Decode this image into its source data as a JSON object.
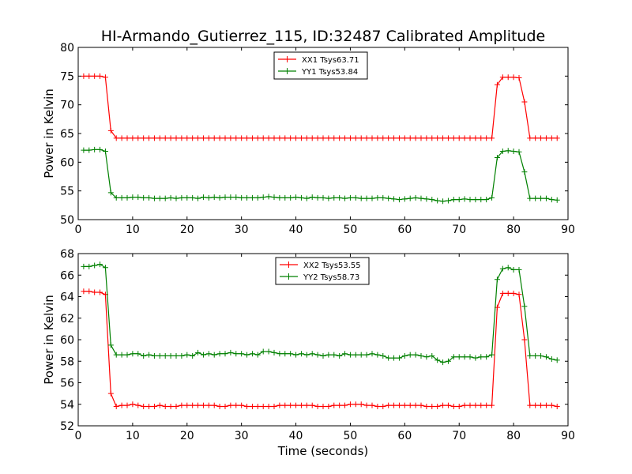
{
  "chart_data": [
    {
      "type": "line",
      "title": "HI-Armando_Gutierrez_115, ID:32487 Calibrated Amplitude",
      "xlabel": "",
      "ylabel": "Power in Kelvin",
      "xlim": [
        0,
        90
      ],
      "ylim": [
        50,
        80
      ],
      "xticks": [
        0,
        10,
        20,
        30,
        40,
        50,
        60,
        70,
        80,
        90
      ],
      "yticks": [
        50,
        55,
        60,
        65,
        70,
        75,
        80
      ],
      "grid": false,
      "legend_position": "top-center",
      "series": [
        {
          "name": "XX1 Tsys63.71",
          "color": "#ff0000",
          "x": [
            1,
            2,
            3,
            4,
            5,
            6,
            7,
            8,
            9,
            10,
            11,
            12,
            13,
            14,
            15,
            16,
            17,
            18,
            19,
            20,
            21,
            22,
            23,
            24,
            25,
            26,
            27,
            28,
            29,
            30,
            31,
            32,
            33,
            34,
            35,
            36,
            37,
            38,
            39,
            40,
            41,
            42,
            43,
            44,
            45,
            46,
            47,
            48,
            49,
            50,
            51,
            52,
            53,
            54,
            55,
            56,
            57,
            58,
            59,
            60,
            61,
            62,
            63,
            64,
            65,
            66,
            67,
            68,
            69,
            70,
            71,
            72,
            73,
            74,
            75,
            76,
            77,
            78,
            79,
            80,
            81,
            82,
            83,
            84,
            85,
            86,
            87,
            88
          ],
          "y": [
            75.0,
            75.0,
            75.0,
            75.0,
            74.8,
            65.5,
            64.2,
            64.2,
            64.2,
            64.2,
            64.2,
            64.2,
            64.2,
            64.2,
            64.2,
            64.2,
            64.2,
            64.2,
            64.2,
            64.2,
            64.2,
            64.2,
            64.2,
            64.2,
            64.2,
            64.2,
            64.2,
            64.2,
            64.2,
            64.2,
            64.2,
            64.2,
            64.2,
            64.2,
            64.2,
            64.2,
            64.2,
            64.2,
            64.2,
            64.2,
            64.2,
            64.2,
            64.2,
            64.2,
            64.2,
            64.2,
            64.2,
            64.2,
            64.2,
            64.2,
            64.2,
            64.2,
            64.2,
            64.2,
            64.2,
            64.2,
            64.2,
            64.2,
            64.2,
            64.2,
            64.2,
            64.2,
            64.2,
            64.2,
            64.2,
            64.2,
            64.2,
            64.2,
            64.2,
            64.2,
            64.2,
            64.2,
            64.2,
            64.2,
            64.2,
            64.2,
            73.5,
            74.8,
            74.8,
            74.8,
            74.7,
            70.5,
            64.2,
            64.2,
            64.2,
            64.2,
            64.2,
            64.2
          ]
        },
        {
          "name": "YY1 Tsys53.84",
          "color": "#008000",
          "x": [
            1,
            2,
            3,
            4,
            5,
            6,
            7,
            8,
            9,
            10,
            11,
            12,
            13,
            14,
            15,
            16,
            17,
            18,
            19,
            20,
            21,
            22,
            23,
            24,
            25,
            26,
            27,
            28,
            29,
            30,
            31,
            32,
            33,
            34,
            35,
            36,
            37,
            38,
            39,
            40,
            41,
            42,
            43,
            44,
            45,
            46,
            47,
            48,
            49,
            50,
            51,
            52,
            53,
            54,
            55,
            56,
            57,
            58,
            59,
            60,
            61,
            62,
            63,
            64,
            65,
            66,
            67,
            68,
            69,
            70,
            71,
            72,
            73,
            74,
            75,
            76,
            77,
            78,
            79,
            80,
            81,
            82,
            83,
            84,
            85,
            86,
            87,
            88
          ],
          "y": [
            62.1,
            62.1,
            62.2,
            62.2,
            61.9,
            54.7,
            53.8,
            53.8,
            53.8,
            53.9,
            53.9,
            53.8,
            53.8,
            53.7,
            53.7,
            53.7,
            53.8,
            53.7,
            53.8,
            53.8,
            53.8,
            53.7,
            53.9,
            53.8,
            53.9,
            53.8,
            53.9,
            53.9,
            53.9,
            53.8,
            53.8,
            53.8,
            53.8,
            53.9,
            54.0,
            53.9,
            53.8,
            53.8,
            53.8,
            53.9,
            53.8,
            53.7,
            53.9,
            53.8,
            53.8,
            53.7,
            53.8,
            53.8,
            53.7,
            53.8,
            53.8,
            53.7,
            53.7,
            53.7,
            53.8,
            53.8,
            53.7,
            53.6,
            53.5,
            53.6,
            53.7,
            53.8,
            53.7,
            53.6,
            53.5,
            53.3,
            53.2,
            53.3,
            53.5,
            53.5,
            53.6,
            53.5,
            53.5,
            53.5,
            53.5,
            53.8,
            60.8,
            61.9,
            62.0,
            61.9,
            61.8,
            58.3,
            53.7,
            53.7,
            53.7,
            53.7,
            53.5,
            53.4
          ]
        }
      ]
    },
    {
      "type": "line",
      "title": "",
      "xlabel": "Time (seconds)",
      "ylabel": "Power in Kelvin",
      "xlim": [
        0,
        90
      ],
      "ylim": [
        52,
        68
      ],
      "xticks": [
        0,
        10,
        20,
        30,
        40,
        50,
        60,
        70,
        80,
        90
      ],
      "yticks": [
        52,
        54,
        56,
        58,
        60,
        62,
        64,
        66,
        68
      ],
      "grid": false,
      "legend_position": "top-center",
      "series": [
        {
          "name": "XX2 Tsys53.55",
          "color": "#ff0000",
          "x": [
            1,
            2,
            3,
            4,
            5,
            6,
            7,
            8,
            9,
            10,
            11,
            12,
            13,
            14,
            15,
            16,
            17,
            18,
            19,
            20,
            21,
            22,
            23,
            24,
            25,
            26,
            27,
            28,
            29,
            30,
            31,
            32,
            33,
            34,
            35,
            36,
            37,
            38,
            39,
            40,
            41,
            42,
            43,
            44,
            45,
            46,
            47,
            48,
            49,
            50,
            51,
            52,
            53,
            54,
            55,
            56,
            57,
            58,
            59,
            60,
            61,
            62,
            63,
            64,
            65,
            66,
            67,
            68,
            69,
            70,
            71,
            72,
            73,
            74,
            75,
            76,
            77,
            78,
            79,
            80,
            81,
            82,
            83,
            84,
            85,
            86,
            87,
            88
          ],
          "y": [
            64.5,
            64.5,
            64.4,
            64.4,
            64.2,
            55.0,
            53.8,
            53.9,
            53.9,
            54.0,
            53.9,
            53.8,
            53.8,
            53.8,
            53.9,
            53.8,
            53.8,
            53.8,
            53.9,
            53.9,
            53.9,
            53.9,
            53.9,
            53.9,
            53.9,
            53.8,
            53.8,
            53.9,
            53.9,
            53.9,
            53.8,
            53.8,
            53.8,
            53.8,
            53.8,
            53.8,
            53.9,
            53.9,
            53.9,
            53.9,
            53.9,
            53.9,
            53.9,
            53.8,
            53.8,
            53.8,
            53.9,
            53.9,
            53.9,
            54.0,
            54.0,
            54.0,
            53.9,
            53.9,
            53.8,
            53.8,
            53.9,
            53.9,
            53.9,
            53.9,
            53.9,
            53.9,
            53.9,
            53.8,
            53.8,
            53.8,
            53.9,
            53.9,
            53.8,
            53.8,
            53.9,
            53.9,
            53.9,
            53.9,
            53.9,
            53.9,
            63.0,
            64.3,
            64.3,
            64.3,
            64.2,
            60.0,
            53.9,
            53.9,
            53.9,
            53.9,
            53.9,
            53.8
          ]
        },
        {
          "name": "YY2 Tsys58.73",
          "color": "#008000",
          "x": [
            1,
            2,
            3,
            4,
            5,
            6,
            7,
            8,
            9,
            10,
            11,
            12,
            13,
            14,
            15,
            16,
            17,
            18,
            19,
            20,
            21,
            22,
            23,
            24,
            25,
            26,
            27,
            28,
            29,
            30,
            31,
            32,
            33,
            34,
            35,
            36,
            37,
            38,
            39,
            40,
            41,
            42,
            43,
            44,
            45,
            46,
            47,
            48,
            49,
            50,
            51,
            52,
            53,
            54,
            55,
            56,
            57,
            58,
            59,
            60,
            61,
            62,
            63,
            64,
            65,
            66,
            67,
            68,
            69,
            70,
            71,
            72,
            73,
            74,
            75,
            76,
            77,
            78,
            79,
            80,
            81,
            82,
            83,
            84,
            85,
            86,
            87,
            88
          ],
          "y": [
            66.8,
            66.8,
            66.9,
            67.0,
            66.7,
            59.5,
            58.6,
            58.6,
            58.6,
            58.7,
            58.7,
            58.5,
            58.6,
            58.5,
            58.5,
            58.5,
            58.5,
            58.5,
            58.5,
            58.6,
            58.5,
            58.8,
            58.6,
            58.7,
            58.6,
            58.7,
            58.7,
            58.8,
            58.7,
            58.7,
            58.6,
            58.7,
            58.6,
            58.9,
            58.9,
            58.8,
            58.7,
            58.7,
            58.7,
            58.6,
            58.7,
            58.6,
            58.7,
            58.6,
            58.5,
            58.6,
            58.6,
            58.5,
            58.7,
            58.6,
            58.6,
            58.6,
            58.6,
            58.7,
            58.6,
            58.5,
            58.3,
            58.3,
            58.3,
            58.5,
            58.6,
            58.6,
            58.5,
            58.4,
            58.5,
            58.1,
            57.9,
            58.0,
            58.4,
            58.4,
            58.4,
            58.4,
            58.3,
            58.4,
            58.4,
            58.6,
            65.6,
            66.6,
            66.7,
            66.5,
            66.5,
            63.1,
            58.5,
            58.5,
            58.5,
            58.4,
            58.2,
            58.1
          ]
        }
      ]
    }
  ]
}
